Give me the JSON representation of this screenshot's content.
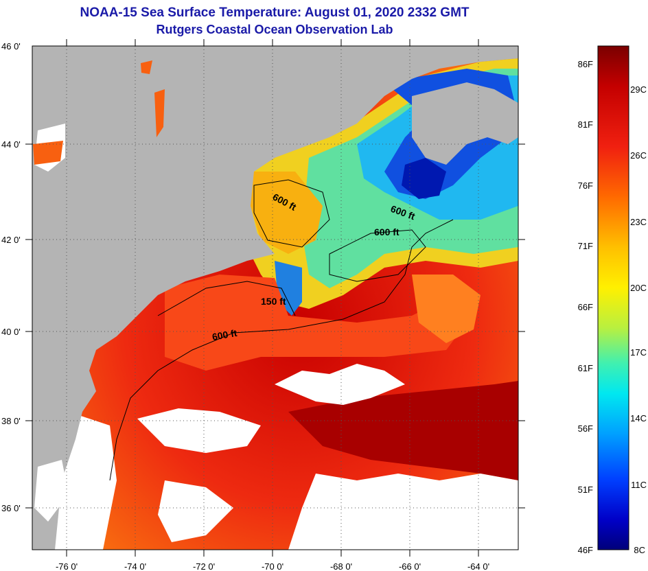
{
  "title": "NOAA-15 Sea Surface Temperature:  August 01, 2020 2332 GMT",
  "subtitle": "Rutgers Coastal Ocean Observation Lab",
  "lon_labels": [
    "-76 0'",
    "-74 0'",
    "-72 0'",
    "-70 0'",
    "-68 0'",
    "-66 0'",
    "-64 0'"
  ],
  "lat_labels": [
    "46 0'",
    "44 0'",
    "42 0'",
    "40 0'",
    "38 0'",
    "36 0'"
  ],
  "contour_labels": [
    "600 ft",
    "600 ft",
    "600 ft",
    "150 ft",
    "600 ft"
  ],
  "colorbar": {
    "f_labels": [
      "86F",
      "81F",
      "76F",
      "71F",
      "66F",
      "61F",
      "56F",
      "51F",
      "46F"
    ],
    "c_labels": [
      "29C",
      "26C",
      "23C",
      "20C",
      "17C",
      "14C",
      "11C",
      "8C"
    ]
  },
  "colors": {
    "land": "#b4b4b4",
    "no_data": "#ffffff",
    "title": "#1a1aa8",
    "scale_high": "#7a0000",
    "scale_low": "#00007a"
  }
}
